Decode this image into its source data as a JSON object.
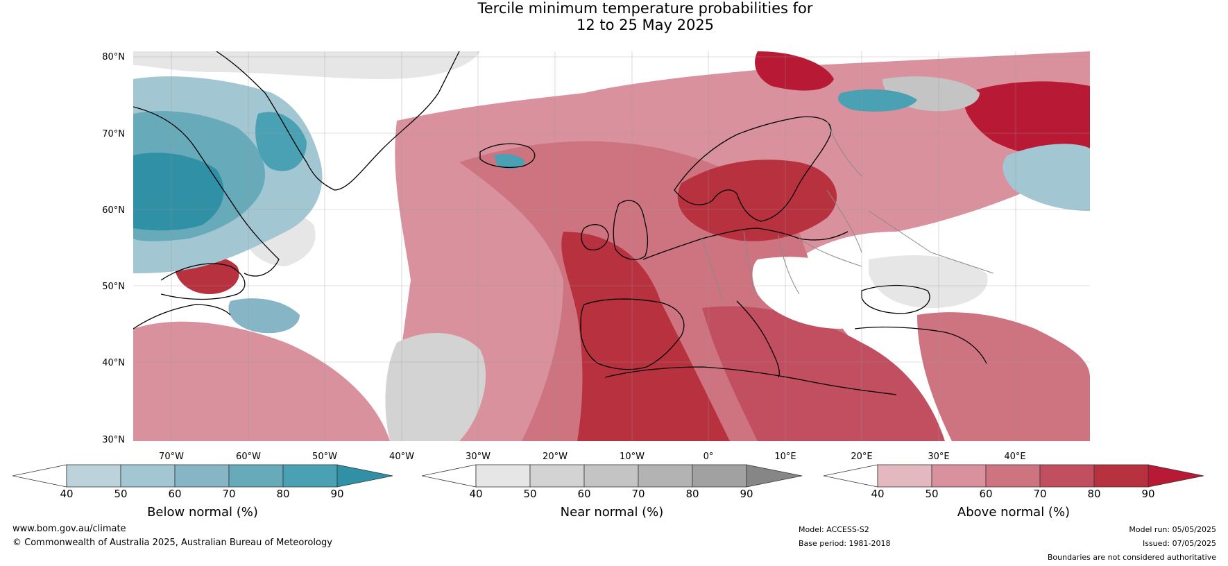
{
  "title": {
    "line1": "Tercile minimum temperature probabilities for",
    "line2": "12 to 25 May 2025"
  },
  "map": {
    "latitude_labels": [
      "80°N",
      "70°N",
      "60°N",
      "50°N",
      "40°N",
      "30°N"
    ],
    "longitude_labels": [
      "70°W",
      "60°W",
      "50°W",
      "40°W",
      "30°W",
      "20°W",
      "10°W",
      "0°",
      "10°E",
      "20°E",
      "30°E",
      "40°E"
    ],
    "colors": {
      "below": [
        "#bcd3dc",
        "#a2c6d2",
        "#86b5c6",
        "#67aab9",
        "#4aa1b4",
        "#2f90a6"
      ],
      "near": [
        "#e6e6e6",
        "#d3d3d3",
        "#c4c4c4",
        "#b3b3b3",
        "#a1a1a1",
        "#868686"
      ],
      "above": [
        "#e4b8bf",
        "#d9929d",
        "#cd7480",
        "#c14f60",
        "#b8313f",
        "#b81a35"
      ]
    }
  },
  "colorbars": [
    {
      "title": "Below normal (%)",
      "ticks": [
        "40",
        "50",
        "60",
        "70",
        "80",
        "90"
      ]
    },
    {
      "title": "Near normal (%)",
      "ticks": [
        "40",
        "50",
        "60",
        "70",
        "80",
        "90"
      ]
    },
    {
      "title": "Above normal (%)",
      "ticks": [
        "40",
        "50",
        "60",
        "70",
        "80",
        "90"
      ]
    }
  ],
  "footer": {
    "website": "www.bom.gov.au/climate",
    "copyright": "© Commonwealth of Australia 2025, Australian Bureau of Meteorology",
    "model": "Model: ACCESS-S2",
    "base_period": "Base period: 1981-2018",
    "model_run": "Model run: 05/05/2025",
    "issued": "Issued: 07/05/2025",
    "disclaimer": "Boundaries are not considered authoritative"
  }
}
